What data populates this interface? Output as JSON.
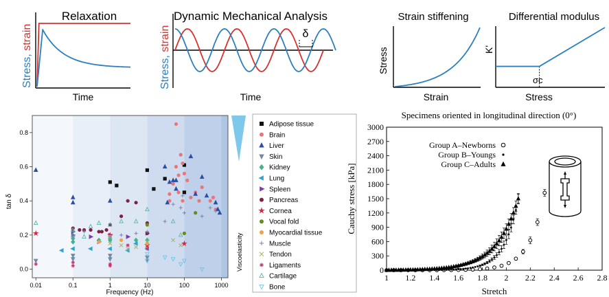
{
  "colors": {
    "stress": "#2a7fbf",
    "strain": "#d9302e",
    "axis": "#000000",
    "tissue_bands": [
      "#f4f7fc",
      "#e9eff8",
      "#dde7f4",
      "#cfdcef",
      "#bfd1ea",
      "#aec5e4"
    ],
    "visco_wedge": "#7ec8ec"
  },
  "chart_data": [
    {
      "type": "line",
      "panel": "relaxation",
      "title": "Relaxation",
      "xlabel": "Time",
      "ylabel_parts": [
        {
          "text": "Stress",
          "color": "#2a7fbf"
        },
        {
          "text": ", ",
          "color": "#2a7fbf"
        },
        {
          "text": "strain",
          "color": "#d9302e"
        }
      ],
      "series": [
        {
          "name": "strain",
          "color": "#d9302e",
          "x": [
            0,
            0.02,
            1.0
          ],
          "y": [
            0,
            1,
            1
          ]
        },
        {
          "name": "stress",
          "color": "#2a7fbf",
          "x": [
            0,
            0.06,
            0.2,
            0.4,
            0.6,
            0.8,
            1.0
          ],
          "y": [
            0,
            0.9,
            0.62,
            0.44,
            0.35,
            0.31,
            0.3
          ]
        }
      ]
    },
    {
      "type": "line",
      "panel": "dma",
      "title": "Dynamic Mechanical Analysis",
      "xlabel": "Time",
      "ylabel_parts": [
        {
          "text": "Stress",
          "color": "#2a7fbf"
        },
        {
          "text": ", ",
          "color": "#2a7fbf"
        },
        {
          "text": "strain",
          "color": "#d9302e"
        }
      ],
      "annotations": [
        "δ"
      ],
      "series": [
        {
          "name": "strain",
          "color": "#d9302e",
          "periods": 3,
          "phase": 0
        },
        {
          "name": "stress",
          "color": "#2a7fbf",
          "periods": 3.25,
          "phase": 0.25
        }
      ]
    },
    {
      "type": "line",
      "panel": "strain-stiffening",
      "title": "Strain stiffening",
      "xlabel": "Strain",
      "ylabel": "Stress",
      "series": [
        {
          "name": "stress",
          "color": "#2a7fbf",
          "shape": "exponential"
        }
      ]
    },
    {
      "type": "line",
      "panel": "differential-modulus",
      "title": "Differential modulus",
      "xlabel": "Stress",
      "ylabel": "K'",
      "annotations": [
        "σc"
      ],
      "series": [
        {
          "name": "K'",
          "color": "#2a7fbf",
          "x": [
            0,
            0.4,
            1.0
          ],
          "y": [
            0.35,
            0.35,
            1.0
          ]
        }
      ]
    },
    {
      "type": "scatter",
      "panel": "tan-delta",
      "xlabel": "Frequency (Hz)",
      "ylabel": "tan δ",
      "xscale": "log",
      "xlim": [
        0.008,
        1500
      ],
      "ylim": [
        -0.05,
        0.9
      ],
      "xticks": [
        0.01,
        0.1,
        1,
        10,
        100,
        1000
      ],
      "xticklabels": [
        "0.01",
        "0.1",
        "1",
        "10",
        "100",
        "1000"
      ],
      "yticks": [
        0.0,
        0.2,
        0.4,
        0.6,
        0.8
      ],
      "yticklabels": [
        "0.0",
        "0.2",
        "0.4",
        "0.6",
        "0.8"
      ],
      "side_label": "Viscoelasticity",
      "legend_position": "right",
      "series": [
        {
          "name": "Adipose tissue",
          "marker": "square",
          "color": "#111111",
          "points": [
            [
              1,
              0.51
            ],
            [
              1.5,
              0.49
            ],
            [
              10,
              0.58
            ],
            [
              15,
              0.47
            ],
            [
              30,
              0.53
            ],
            [
              100,
              0.61
            ],
            [
              100,
              0.45
            ]
          ]
        },
        {
          "name": "Brain",
          "marker": "circle",
          "color": "#e8757a",
          "points": [
            [
              60,
              0.85
            ],
            [
              80,
              0.67
            ],
            [
              90,
              0.62
            ],
            [
              100,
              0.56
            ],
            [
              70,
              0.55
            ],
            [
              50,
              0.5
            ],
            [
              120,
              0.52
            ],
            [
              200,
              0.45
            ],
            [
              300,
              0.48
            ],
            [
              150,
              0.42
            ],
            [
              70,
              0.45
            ],
            [
              40,
              0.44
            ],
            [
              500,
              0.4
            ],
            [
              700,
              0.35
            ],
            [
              250,
              0.4
            ],
            [
              600,
              0.42
            ],
            [
              90,
              0.4
            ],
            [
              40,
              0.4
            ],
            [
              60,
              0.6
            ]
          ]
        },
        {
          "name": "Liver",
          "marker": "triangle",
          "color": "#2b4fa3",
          "points": [
            [
              0.01,
              0.58
            ],
            [
              0.1,
              0.42
            ],
            [
              0.1,
              0.39
            ],
            [
              1,
              0.4
            ],
            [
              30,
              0.6
            ],
            [
              40,
              0.51
            ],
            [
              50,
              0.52
            ],
            [
              60,
              0.52
            ],
            [
              150,
              0.66
            ],
            [
              300,
              0.54
            ],
            [
              700,
              0.39
            ],
            [
              200,
              0.44
            ],
            [
              800,
              0.35
            ],
            [
              900,
              0.33
            ],
            [
              400,
              0.43
            ],
            [
              60,
              0.47
            ],
            [
              35,
              0.39
            ]
          ]
        },
        {
          "name": "Skin",
          "marker": "tri-down",
          "color": "#6f8aa6",
          "points": [
            [
              0.01,
              0.05
            ],
            [
              0.1,
              0.08
            ],
            [
              0.1,
              0.06
            ],
            [
              1,
              0.08
            ],
            [
              1,
              0.06
            ],
            [
              10,
              0.07
            ],
            [
              10,
              0.05
            ]
          ]
        },
        {
          "name": "Kidney",
          "marker": "diamond",
          "color": "#44b28d",
          "points": [
            [
              0.1,
              0.18
            ],
            [
              0.1,
              0.16
            ],
            [
              1,
              0.18
            ],
            [
              1,
              0.17
            ],
            [
              0.5,
              0.17
            ],
            [
              5,
              0.17
            ],
            [
              10,
              0.17
            ]
          ]
        },
        {
          "name": "Lung",
          "marker": "tri-left",
          "color": "#2fa3cf",
          "points": [
            [
              0.05,
              0.11
            ],
            [
              0.1,
              0.12
            ],
            [
              0.3,
              0.12
            ],
            [
              1,
              0.12
            ],
            [
              3,
              0.11
            ],
            [
              10,
              0.12
            ],
            [
              5,
              0.15
            ]
          ]
        },
        {
          "name": "Spleen",
          "marker": "tri-right",
          "color": "#7d3fa7",
          "points": [
            [
              0.1,
              0.22
            ],
            [
              0.1,
              0.2
            ],
            [
              0.3,
              0.19
            ],
            [
              1,
              0.2
            ],
            [
              0.5,
              0.16
            ],
            [
              3,
              0.19
            ],
            [
              10,
              0.21
            ]
          ]
        },
        {
          "name": "Pancreas",
          "marker": "circle",
          "color": "#7b2343",
          "points": [
            [
              0.1,
              0.24
            ],
            [
              0.15,
              0.23
            ],
            [
              0.2,
              0.23
            ],
            [
              0.3,
              0.23
            ],
            [
              0.5,
              0.22
            ],
            [
              0.6,
              0.22
            ],
            [
              0.8,
              0.23
            ],
            [
              1,
              0.26
            ],
            [
              2,
              0.31
            ],
            [
              3,
              0.4
            ],
            [
              5,
              0.39
            ],
            [
              10,
              0.21
            ],
            [
              10,
              0.27
            ]
          ]
        },
        {
          "name": "Cornea",
          "marker": "star",
          "color": "#d7263d",
          "points": [
            [
              0.01,
              0.21
            ],
            [
              1,
              0.2
            ],
            [
              100,
              0.15
            ],
            [
              10,
              0.14
            ]
          ]
        },
        {
          "name": "Vocal fold",
          "marker": "circle",
          "color": "#6b8a1e",
          "points": [
            [
              10,
              0.26
            ],
            [
              100,
              0.21
            ],
            [
              200,
              0.33
            ]
          ]
        },
        {
          "name": "Myocardial tissue",
          "marker": "circle",
          "color": "#f0a24a",
          "points": [
            [
              1,
              0.19
            ],
            [
              0.5,
              0.16
            ],
            [
              2,
              0.17
            ],
            [
              10,
              0.15
            ]
          ]
        },
        {
          "name": "Muscle",
          "marker": "plus",
          "color": "#7a84a6",
          "points": [
            [
              0.1,
              0.19
            ],
            [
              0.2,
              0.22
            ],
            [
              1,
              0.19
            ],
            [
              2,
              0.2
            ],
            [
              5,
              0.21
            ],
            [
              10,
              0.22
            ],
            [
              50,
              0.38
            ],
            [
              80,
              0.36
            ],
            [
              100,
              0.33
            ],
            [
              300,
              0.31
            ],
            [
              500,
              0.36
            ],
            [
              700,
              0.34
            ],
            [
              90,
              0.43
            ],
            [
              30,
              0.28
            ]
          ]
        },
        {
          "name": "Tendon",
          "marker": "cross",
          "color": "#a7b06a",
          "points": [
            [
              1,
              0.15
            ],
            [
              2,
              0.14
            ],
            [
              3,
              0.12
            ],
            [
              5,
              0.13
            ],
            [
              10,
              0.16
            ],
            [
              50,
              0.17
            ],
            [
              80,
              0.14
            ]
          ]
        },
        {
          "name": "Ligaments",
          "marker": "asterisk",
          "color": "#c0396b",
          "points": [
            [
              0.01,
              0.03
            ],
            [
              0.1,
              0.04
            ],
            [
              0.1,
              0.02
            ],
            [
              1,
              0.03
            ],
            [
              1,
              0.02
            ],
            [
              3,
              0.14
            ],
            [
              10,
              0.12
            ]
          ]
        },
        {
          "name": "Cartilage",
          "marker": "tri-open",
          "color": "#5cb6a3",
          "points": [
            [
              0.01,
              0.27
            ],
            [
              0.1,
              0.23
            ],
            [
              0.1,
              0.2
            ],
            [
              0.2,
              0.19
            ],
            [
              0.3,
              0.25
            ],
            [
              0.5,
              0.27
            ],
            [
              1,
              0.26
            ],
            [
              2,
              0.28
            ],
            [
              5,
              0.28
            ],
            [
              10,
              0.35
            ],
            [
              50,
              0.28
            ],
            [
              80,
              0.2
            ]
          ]
        },
        {
          "name": "Bone",
          "marker": "tri-down-open",
          "color": "#6fc4e6",
          "points": [
            [
              10,
              0.09
            ],
            [
              10,
              0.05
            ],
            [
              30,
              0.07
            ],
            [
              50,
              0.06
            ],
            [
              80,
              0.03
            ],
            [
              300,
              0.0
            ],
            [
              100,
              0.05
            ]
          ]
        }
      ]
    },
    {
      "type": "scatter",
      "panel": "cauchy",
      "title": "Specimens oriented in longitudinal direction (0°)",
      "xlabel": "Stretch",
      "ylabel": "Cauchy stress [kPa]",
      "xlim": [
        1,
        2.8
      ],
      "ylim": [
        0,
        3000
      ],
      "xticks": [
        1,
        1.2,
        1.4,
        1.6,
        1.8,
        2,
        2.2,
        2.4,
        2.6,
        2.8
      ],
      "xticklabels": [
        "1",
        "1.2",
        "1.4",
        "1.6",
        "1.8",
        "2",
        "2.2",
        "2.4",
        "2.6",
        "2.8"
      ],
      "yticks": [
        0,
        300,
        600,
        900,
        1200,
        1500,
        1800,
        2100,
        2400,
        2700,
        3000
      ],
      "yticklabels": [
        "0",
        "300",
        "600",
        "900",
        "1200",
        "1500",
        "1800",
        "2100",
        "2400",
        "2700",
        "3000"
      ],
      "legend_position": "upper-left",
      "series": [
        {
          "name": "Group A–Newborns",
          "marker": "open-circle",
          "x_end": 2.31,
          "k": 7.94,
          "error": 70,
          "step": 0.06
        },
        {
          "name": "Group B–Youngs",
          "marker": "dot",
          "x_end": 2.1,
          "k": 8.62,
          "error": 90,
          "step": 0.02
        },
        {
          "name": "Group C–Adults",
          "marker": "triangle",
          "x_end": 2.1,
          "k": 5.5,
          "error": 110,
          "step": 0.02
        }
      ]
    }
  ]
}
